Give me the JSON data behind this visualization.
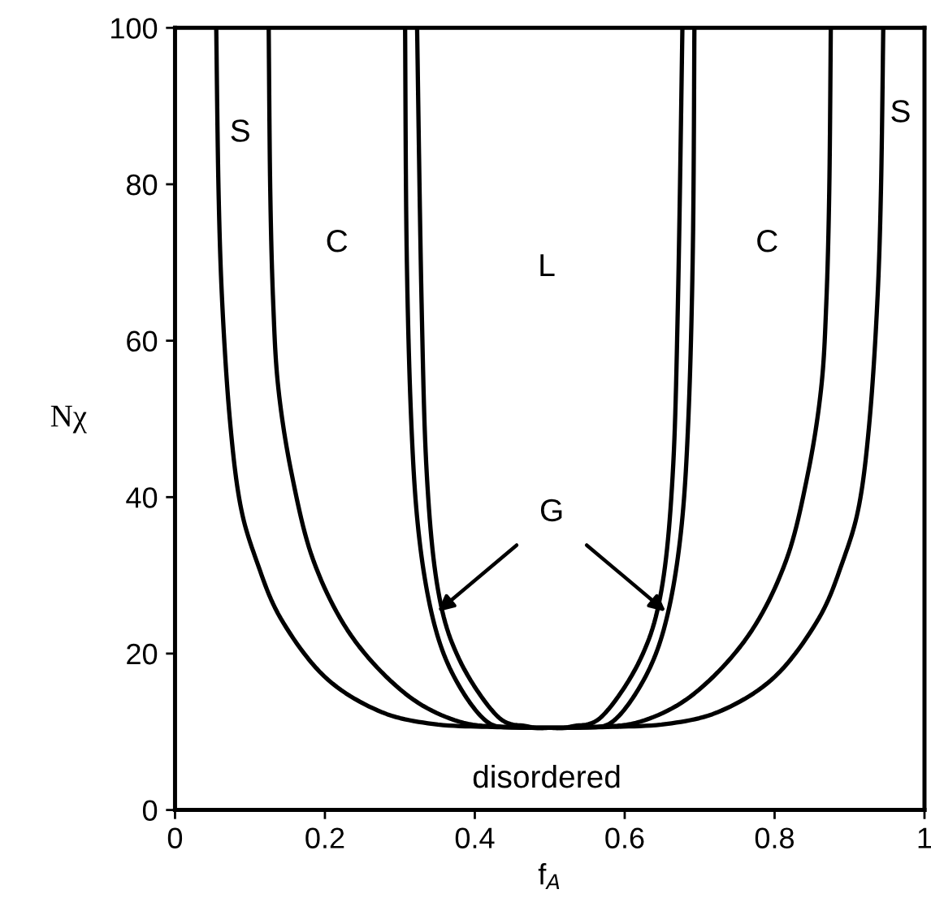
{
  "chart_data": {
    "type": "line",
    "xlabel": "f$_{A}$",
    "ylabel": "Nχ",
    "xlim": [
      0,
      1
    ],
    "ylim": [
      0,
      100
    ],
    "xticks": [
      0,
      0.2,
      0.4,
      0.6,
      0.8,
      1
    ],
    "yticks": [
      0,
      20,
      40,
      60,
      80,
      100
    ],
    "grid": false,
    "legend": false,
    "marker": "none",
    "line_style": "solid",
    "series": [
      {
        "color": "#000000",
        "x": [
          0.055,
          0.058,
          0.063,
          0.073,
          0.087,
          0.109,
          0.141,
          0.199,
          0.271,
          0.344,
          0.43,
          0.5,
          0.57,
          0.656,
          0.729,
          0.801,
          0.859,
          0.891,
          0.913,
          0.927,
          0.937,
          0.942,
          0.945
        ],
        "values": [
          100,
          79.5,
          64.8,
          50.1,
          39.1,
          31.8,
          24.5,
          17.1,
          12.7,
          11.0,
          10.6,
          10.5,
          10.6,
          11.0,
          12.7,
          17.1,
          24.5,
          31.8,
          39.1,
          50.1,
          64.8,
          79.5,
          100
        ]
      },
      {
        "color": "#000000",
        "x": [
          0.125,
          0.127,
          0.131,
          0.138,
          0.156,
          0.185,
          0.235,
          0.307,
          0.379,
          0.45,
          0.5,
          0.55,
          0.621,
          0.693,
          0.765,
          0.815,
          0.844,
          0.862,
          0.869,
          0.873,
          0.875
        ],
        "values": [
          100,
          79.5,
          64.8,
          53.8,
          42.8,
          31.8,
          22.3,
          14.9,
          11.3,
          10.6,
          10.5,
          10.6,
          11.3,
          14.9,
          22.3,
          31.8,
          42.8,
          53.8,
          64.8,
          79.5,
          100
        ]
      },
      {
        "color": "#000000",
        "x": [
          0.307,
          0.309,
          0.315,
          0.325,
          0.344,
          0.372,
          0.416,
          0.46,
          0.5,
          0.54,
          0.584,
          0.628,
          0.656,
          0.675,
          0.685,
          0.691,
          0.693
        ],
        "values": [
          100,
          72.1,
          50.1,
          35.5,
          24.5,
          17.1,
          11.3,
          10.6,
          10.5,
          10.6,
          11.3,
          17.1,
          24.5,
          35.5,
          50.1,
          72.1,
          100
        ]
      },
      {
        "color": "#000000",
        "x": [
          0.323,
          0.329,
          0.336,
          0.351,
          0.379,
          0.43,
          0.47,
          0.5,
          0.53,
          0.57,
          0.621,
          0.649,
          0.664,
          0.671,
          0.677
        ],
        "values": [
          100,
          64.8,
          42.8,
          28.1,
          19.3,
          12.0,
          10.7,
          10.5,
          10.7,
          12.0,
          19.3,
          28.1,
          42.8,
          64.8,
          100
        ]
      }
    ],
    "annotations": [
      "S",
      "S",
      "C",
      "C",
      "L",
      {
        "text": "G",
        "x": 0.346,
        "y": 25
      },
      "disordered"
    ]
  }
}
